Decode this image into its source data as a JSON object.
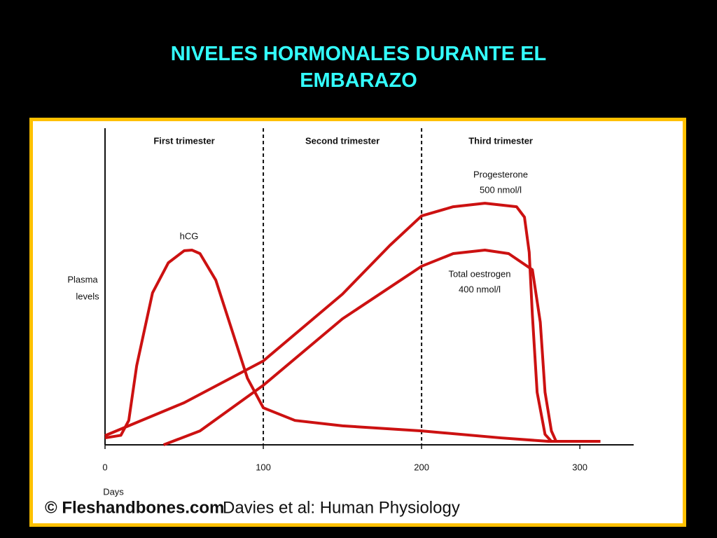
{
  "slide": {
    "title_lines": [
      "NIVELES HORMONALES DURANTE EL",
      "EMBARAZO"
    ]
  },
  "credit": {
    "source": "© Fleshandbones.com",
    "reference": "Davies et al: Human Physiology"
  },
  "chart_data": {
    "type": "line",
    "y_label_lines": [
      "Plasma",
      "levels"
    ],
    "x_label": "Days",
    "xlim": [
      0,
      334
    ],
    "xticks": [
      0,
      100,
      200,
      300
    ],
    "ylim": [
      0,
      100
    ],
    "regions": [
      "First trimester",
      "Second trimester",
      "Third trimester"
    ],
    "dividers": [
      100,
      200
    ],
    "series": [
      {
        "name": "hCG",
        "color": "#cc1111",
        "x": [
          0,
          10,
          15,
          20,
          30,
          40,
          50,
          55,
          60,
          70,
          80,
          90,
          100,
          120,
          150,
          200,
          250,
          280,
          313
        ],
        "values": [
          2.2,
          3,
          7.7,
          25,
          48,
          57.5,
          61.3,
          61.5,
          60.4,
          52,
          36.5,
          21,
          11.7,
          7.7,
          6,
          4.4,
          2.2,
          1.1,
          1.1
        ]
      },
      {
        "name": "Progesterone",
        "note": "500 nmol/l",
        "color": "#cc1111",
        "x": [
          0,
          50,
          100,
          150,
          180,
          200,
          220,
          240,
          260,
          265,
          268,
          270,
          273,
          278,
          282
        ],
        "values": [
          2.9,
          13.3,
          26.5,
          47.6,
          63,
          72.3,
          75.2,
          76.3,
          75.2,
          71.9,
          60.8,
          41,
          16.6,
          3.3,
          1.1
        ]
      },
      {
        "name": "Total oestrogen",
        "note": "400 nmol/l",
        "color": "#cc1111",
        "x": [
          37,
          60,
          100,
          150,
          200,
          220,
          240,
          255,
          270,
          275,
          278,
          282,
          285
        ],
        "values": [
          0,
          4.4,
          18.8,
          39.8,
          56.4,
          60.4,
          61.5,
          60.4,
          55.3,
          38.7,
          16.6,
          4.4,
          1.1
        ]
      }
    ]
  }
}
